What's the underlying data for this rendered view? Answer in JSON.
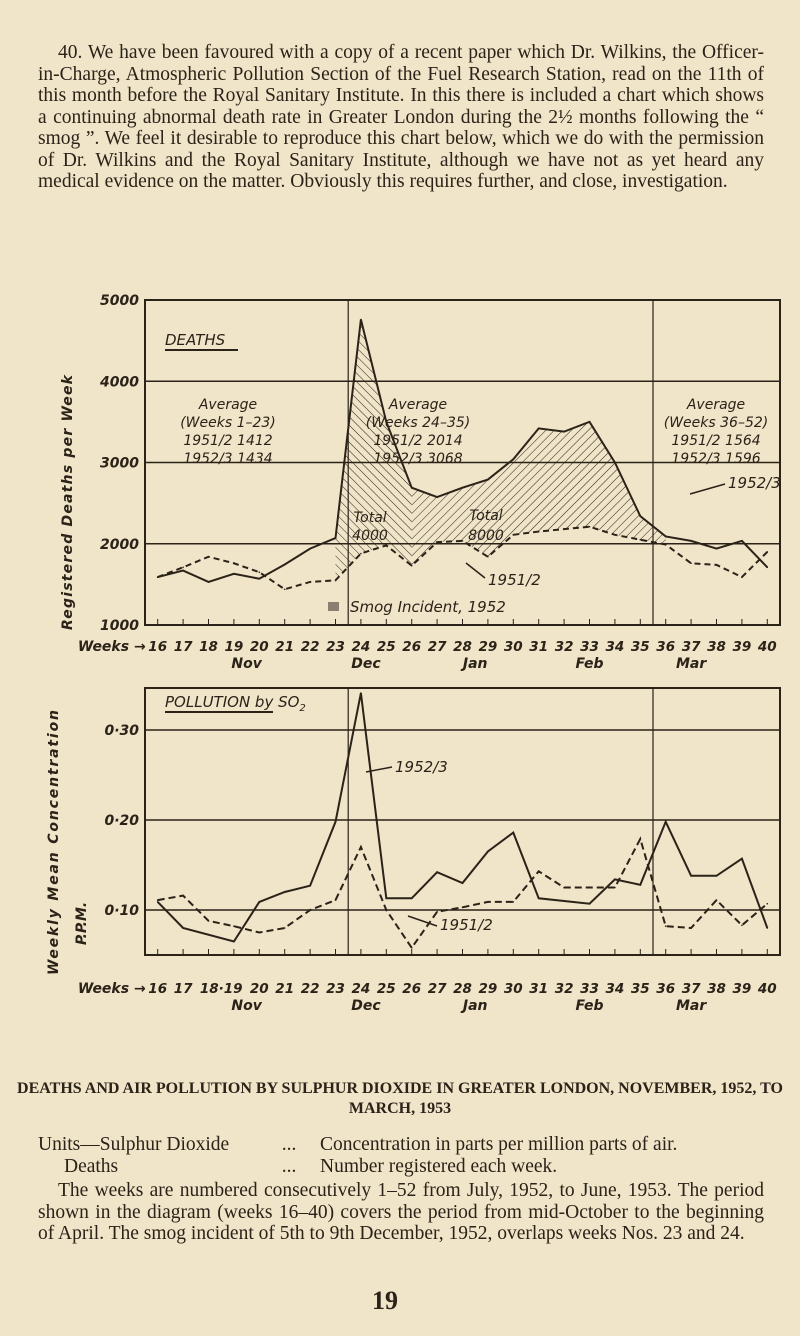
{
  "intro": "40. We have been favoured with a copy of a recent paper which Dr. Wilkins, the Officer-in-Charge, Atmospheric Pollution Section of the Fuel Research Station, read on the 11th of this month before the Royal Sanitary Institute. In this there is included a chart which shows a continuing abnormal death rate in Greater London during the 2½ months following the “ smog ”. We feel it desirable to reproduce this chart below, which we do with the permission of Dr. Wilkins and the Royal Sanitary Institute, although we have not as yet heard any medical evidence on the matter. Obviously this requires further, and close, investigation.",
  "chart_data": [
    {
      "type": "line",
      "title": "DEATHS",
      "ylabel": "Registered Deaths per Week",
      "xlabel": "Weeks →",
      "ylim": [
        1000,
        5000
      ],
      "yticks": [
        "5000",
        "4000",
        "3000",
        "2000",
        "1000"
      ],
      "xtick_labels": [
        "16",
        "17",
        "18",
        "19",
        "20",
        "21",
        "22",
        "23",
        "24",
        "25",
        "26",
        "27",
        "28",
        "29",
        "30",
        "31",
        "32",
        "33",
        "34",
        "35",
        "36",
        "37",
        "38",
        "39",
        "40"
      ],
      "months": [
        "Nov",
        "Dec",
        "Jan",
        "Feb",
        "Mar"
      ],
      "x": [
        16,
        17,
        18,
        19,
        20,
        21,
        22,
        23,
        24,
        25,
        26,
        27,
        28,
        29,
        30,
        31,
        32,
        33,
        34,
        35,
        36,
        37,
        38,
        39,
        40
      ],
      "series": [
        {
          "name": "1952/3",
          "style": "solid",
          "values": [
            1590,
            1670,
            1530,
            1630,
            1570,
            1745,
            1940,
            2070,
            4760,
            3500,
            2690,
            2575,
            2690,
            2790,
            3040,
            3420,
            3380,
            3500,
            3000,
            2340,
            2090,
            2035,
            1940,
            2035,
            1710
          ]
        },
        {
          "name": "1951/2",
          "style": "dashed",
          "values": [
            1590,
            1710,
            1840,
            1760,
            1650,
            1440,
            1530,
            1550,
            1880,
            1980,
            1730,
            2020,
            2035,
            1840,
            2110,
            2150,
            2180,
            2210,
            2110,
            2050,
            1990,
            1760,
            1740,
            1590,
            1900
          ]
        }
      ],
      "annotations": {
        "avg1": [
          "Average",
          "(Weeks 1–23)",
          "1951/2  1412",
          "1952/3  1434"
        ],
        "avg2": [
          "Average",
          "(Weeks 24–35)",
          "1951/2  2014",
          "1952/3  3068"
        ],
        "avg3": [
          "Average",
          "(Weeks 36–52)",
          "1951/2  1564",
          "1952/3  1596"
        ],
        "total1": [
          "Total",
          "4000"
        ],
        "total2": [
          "Total",
          "8000"
        ],
        "legend_smog": "Smog Incident, 1952"
      },
      "grid": true
    },
    {
      "type": "line",
      "title": "POLLUTION by SO",
      "title_sub": "2",
      "ylabel": "Weekly Mean Concentration",
      "ylabel2": "P.P.M.",
      "xlabel": "Weeks →",
      "ylim": [
        0.05,
        0.35
      ],
      "yticks": [
        "0·30",
        "0·20",
        "0·10"
      ],
      "xtick_labels": [
        "16",
        "17",
        "18·19",
        "20",
        "21",
        "22",
        "23",
        "24",
        "25",
        "26",
        "27",
        "28",
        "29",
        "30",
        "31",
        "32",
        "33",
        "34",
        "35",
        "36",
        "37",
        "38",
        "39",
        "40"
      ],
      "months": [
        "Nov",
        "Dec",
        "Jan",
        "Feb",
        "Mar"
      ],
      "series": [
        {
          "name": "1952/3",
          "style": "solid",
          "x": [
            16,
            17,
            19,
            20,
            21,
            22,
            23,
            24,
            25,
            26,
            27,
            28,
            29,
            30,
            31,
            33,
            34,
            35,
            36,
            37,
            38,
            39,
            40
          ],
          "values": [
            0.109,
            0.08,
            0.065,
            0.109,
            0.12,
            0.127,
            0.198,
            0.341,
            0.113,
            0.113,
            0.142,
            0.13,
            0.165,
            0.186,
            0.113,
            0.107,
            0.134,
            0.128,
            0.198,
            0.138,
            0.138,
            0.157,
            0.08
          ]
        },
        {
          "name": "1951/2",
          "style": "dashed",
          "x": [
            16,
            17,
            18,
            19,
            20,
            21,
            22,
            23,
            24,
            25,
            26,
            27,
            28,
            29,
            30,
            31,
            32,
            33,
            34,
            35,
            36,
            37,
            38,
            39,
            40
          ],
          "values": [
            0.111,
            0.116,
            0.088,
            0.082,
            0.075,
            0.08,
            0.1,
            0.111,
            0.17,
            0.1,
            0.058,
            0.098,
            0.103,
            0.109,
            0.109,
            0.143,
            0.125,
            0.125,
            0.125,
            0.179,
            0.082,
            0.08,
            0.111,
            0.083,
            0.107
          ]
        }
      ],
      "grid": true
    }
  ],
  "caption": "DEATHS AND AIR POLLUTION BY SULPHUR DIOXIDE IN GREATER LONDON, NOVEMBER, 1952, TO MARCH, 1953",
  "units": [
    {
      "label": "Units—Sulphur Dioxide",
      "dots": "...",
      "text": "Concentration in parts per million parts of air."
    },
    {
      "label": "Deaths",
      "dots": "...",
      "text": "Number registered each week."
    }
  ],
  "note": "The weeks are numbered consecutively 1–52 from July, 1952, to June, 1953. The period shown in the diagram (weeks 16–40) covers the period from mid-October to the beginning of April. The smog incident of 5th to 9th December, 1952, overlaps weeks Nos. 23 and 24.",
  "page_number": "19",
  "colors": {
    "paper": "#f0e4c9",
    "ink": "#2b2218"
  }
}
